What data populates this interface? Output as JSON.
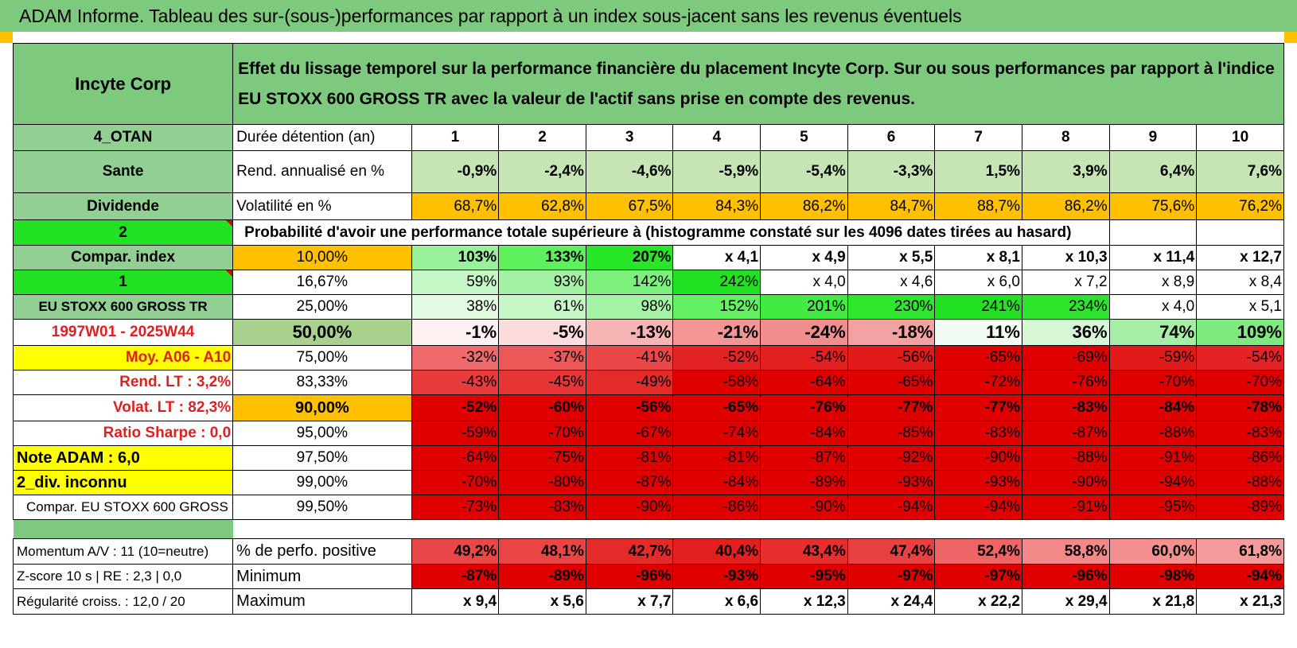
{
  "title": "ADAM Informe. Tableau des sur-(sous-)performances par rapport à un index sous-jacent sans les revenus éventuels",
  "colors": {
    "header_green": "#7dc97d",
    "label_green": "#92cf92",
    "bright_green": "#22e022",
    "yellow": "#ffff00",
    "orange": "#ffc000",
    "light_green_row": "#c6e4b4",
    "red": "#e00000",
    "text_red": "#e02020"
  },
  "header": {
    "company": "Incyte Corp",
    "description": "Effet du lissage temporel sur la performance financière du placement Incyte Corp. Sur ou sous performances par rapport à l'indice EU STOXX 600 GROSS TR avec la valeur de l'actif sans prise en compte des revenus."
  },
  "rows": {
    "duration": {
      "side": "4_OTAN",
      "label": "Durée détention (an)",
      "values": [
        "1",
        "2",
        "3",
        "4",
        "5",
        "6",
        "7",
        "8",
        "9",
        "10"
      ]
    },
    "return": {
      "side": "Sante",
      "label": "Rend. annualisé en %",
      "values": [
        "-0,9%",
        "-2,4%",
        "-4,6%",
        "-5,9%",
        "-5,4%",
        "-3,3%",
        "1,5%",
        "3,9%",
        "6,4%",
        "7,6%"
      ]
    },
    "volatility": {
      "side": "Dividende",
      "label": "Volatilité en %",
      "values": [
        "68,7%",
        "62,8%",
        "67,5%",
        "84,3%",
        "86,2%",
        "84,7%",
        "88,7%",
        "86,2%",
        "75,6%",
        "76,2%"
      ]
    },
    "probability_header": {
      "side": "2",
      "text": "Probabilité d'avoir une performance totale supérieure à (histogramme constaté sur les 4096 dates tirées au hasard)"
    }
  },
  "probability_rows": [
    {
      "side": "Compar. index",
      "pct": "10,00%",
      "values": [
        "103%",
        "133%",
        "207%",
        "x 4,1",
        "x 4,9",
        "x 5,5",
        "x 8,1",
        "x 10,3",
        "x 11,4",
        "x 12,7"
      ]
    },
    {
      "side": "1",
      "pct": "16,67%",
      "values": [
        "59%",
        "93%",
        "142%",
        "242%",
        "x 4,0",
        "x 4,6",
        "x 6,0",
        "x 7,2",
        "x 8,9",
        "x 8,4"
      ]
    },
    {
      "side": "EU STOXX 600 GROSS TR",
      "pct": "25,00%",
      "values": [
        "38%",
        "61%",
        "98%",
        "152%",
        "201%",
        "230%",
        "241%",
        "234%",
        "x 4,0",
        "x 5,1"
      ]
    },
    {
      "side": "1997W01 - 2025W44",
      "pct": "50,00%",
      "values": [
        "-1%",
        "-5%",
        "-13%",
        "-21%",
        "-24%",
        "-18%",
        "11%",
        "36%",
        "74%",
        "109%"
      ]
    },
    {
      "side": "Moy. A06 - A10",
      "pct": "75,00%",
      "values": [
        "-32%",
        "-37%",
        "-41%",
        "-52%",
        "-54%",
        "-56%",
        "-65%",
        "-69%",
        "-59%",
        "-54%"
      ]
    },
    {
      "side": "Rend. LT :   3,2%",
      "pct": "83,33%",
      "values": [
        "-43%",
        "-45%",
        "-49%",
        "-58%",
        "-64%",
        "-65%",
        "-72%",
        "-76%",
        "-70%",
        "-70%"
      ]
    },
    {
      "side": "Volat. LT :   82,3%",
      "pct": "90,00%",
      "values": [
        "-52%",
        "-60%",
        "-56%",
        "-65%",
        "-76%",
        "-77%",
        "-77%",
        "-83%",
        "-84%",
        "-78%"
      ]
    },
    {
      "side": "Ratio Sharpe :    0,0",
      "pct": "95,00%",
      "values": [
        "-59%",
        "-70%",
        "-67%",
        "-74%",
        "-84%",
        "-85%",
        "-83%",
        "-87%",
        "-88%",
        "-83%"
      ]
    },
    {
      "side": "Note ADAM : 6,0",
      "pct": "97,50%",
      "values": [
        "-64%",
        "-75%",
        "-81%",
        "-81%",
        "-87%",
        "-92%",
        "-90%",
        "-88%",
        "-91%",
        "-86%"
      ]
    },
    {
      "side": "2_div. inconnu",
      "pct": "99,00%",
      "values": [
        "-70%",
        "-80%",
        "-87%",
        "-84%",
        "-89%",
        "-93%",
        "-93%",
        "-90%",
        "-94%",
        "-88%"
      ]
    },
    {
      "side": "Compar. EU STOXX 600 GROSS TR",
      "pct": "99,50%",
      "values": [
        "-73%",
        "-83%",
        "-90%",
        "-86%",
        "-90%",
        "-94%",
        "-94%",
        "-91%",
        "-95%",
        "-89%"
      ]
    }
  ],
  "summary_rows": [
    {
      "side": "Momentum A/V : 11 (10=neutre)",
      "label": "% de perfo. positive",
      "values": [
        "49,2%",
        "48,1%",
        "42,7%",
        "40,4%",
        "43,4%",
        "47,4%",
        "52,4%",
        "58,8%",
        "60,0%",
        "61,8%"
      ]
    },
    {
      "side": "Z-score 10 s | RE : 2,3 | 0,0",
      "label": "Minimum",
      "values": [
        "-87%",
        "-89%",
        "-96%",
        "-93%",
        "-95%",
        "-97%",
        "-97%",
        "-96%",
        "-98%",
        "-94%"
      ]
    },
    {
      "side": "Régularité croiss. : 12,0 / 20",
      "label": "Maximum",
      "values": [
        "x 9,4",
        "x 5,6",
        "x 7,7",
        "x 6,6",
        "x 12,3",
        "x 24,4",
        "x 22,2",
        "x 29,4",
        "x 21,8",
        "x 21,3"
      ]
    }
  ]
}
